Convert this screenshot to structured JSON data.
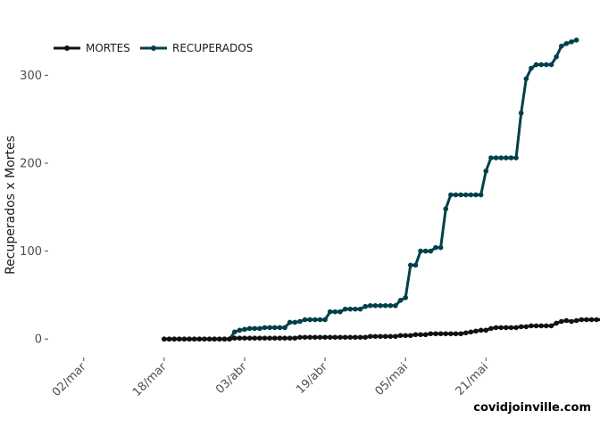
{
  "chart_data": {
    "type": "line",
    "title": "",
    "xlabel": "",
    "ylabel": "Recuperados x Mortes",
    "caption": "covidjoinville.com",
    "legend_position": "top-left",
    "grid": false,
    "x_start": "2020-03-18",
    "x_ticks": [
      "02/mar",
      "18/mar",
      "03/abr",
      "19/abr",
      "05/mai",
      "21/mai"
    ],
    "y_ticks": [
      0,
      100,
      200,
      300
    ],
    "xlim": [
      "2020-02-25",
      "2020-06-07"
    ],
    "ylim": [
      -15,
      345
    ],
    "series": [
      {
        "name": "MORTES",
        "color": "#111111",
        "values": [
          0,
          0,
          0,
          0,
          0,
          0,
          0,
          0,
          0,
          0,
          0,
          0,
          0,
          0,
          1,
          1,
          1,
          1,
          1,
          1,
          1,
          1,
          1,
          1,
          1,
          1,
          1,
          2,
          2,
          2,
          2,
          2,
          2,
          2,
          2,
          2,
          2,
          2,
          2,
          2,
          2,
          3,
          3,
          3,
          3,
          3,
          3,
          4,
          4,
          4,
          5,
          5,
          5,
          6,
          6,
          6,
          6,
          6,
          6,
          6,
          7,
          8,
          9,
          10,
          10,
          12,
          13,
          13,
          13,
          13,
          13,
          14,
          14,
          15,
          15,
          15,
          15,
          15,
          18,
          20,
          21,
          20,
          21,
          22,
          22,
          22,
          22,
          22,
          22,
          23
        ]
      },
      {
        "name": "RECUPERADOS",
        "color": "#00404a",
        "values": [
          0,
          0,
          0,
          0,
          0,
          0,
          0,
          0,
          0,
          0,
          0,
          0,
          0,
          0,
          8,
          10,
          11,
          12,
          12,
          12,
          13,
          13,
          13,
          13,
          13,
          19,
          19,
          20,
          22,
          22,
          22,
          22,
          22,
          31,
          31,
          31,
          34,
          34,
          34,
          34,
          37,
          38,
          38,
          38,
          38,
          38,
          38,
          44,
          47,
          84,
          84,
          100,
          100,
          100,
          104,
          104,
          148,
          164,
          164,
          164,
          164,
          164,
          164,
          164,
          191,
          206,
          206,
          206,
          206,
          206,
          206,
          257,
          296,
          308,
          312,
          312,
          312,
          312,
          321,
          333,
          336,
          338,
          340
        ]
      }
    ]
  }
}
